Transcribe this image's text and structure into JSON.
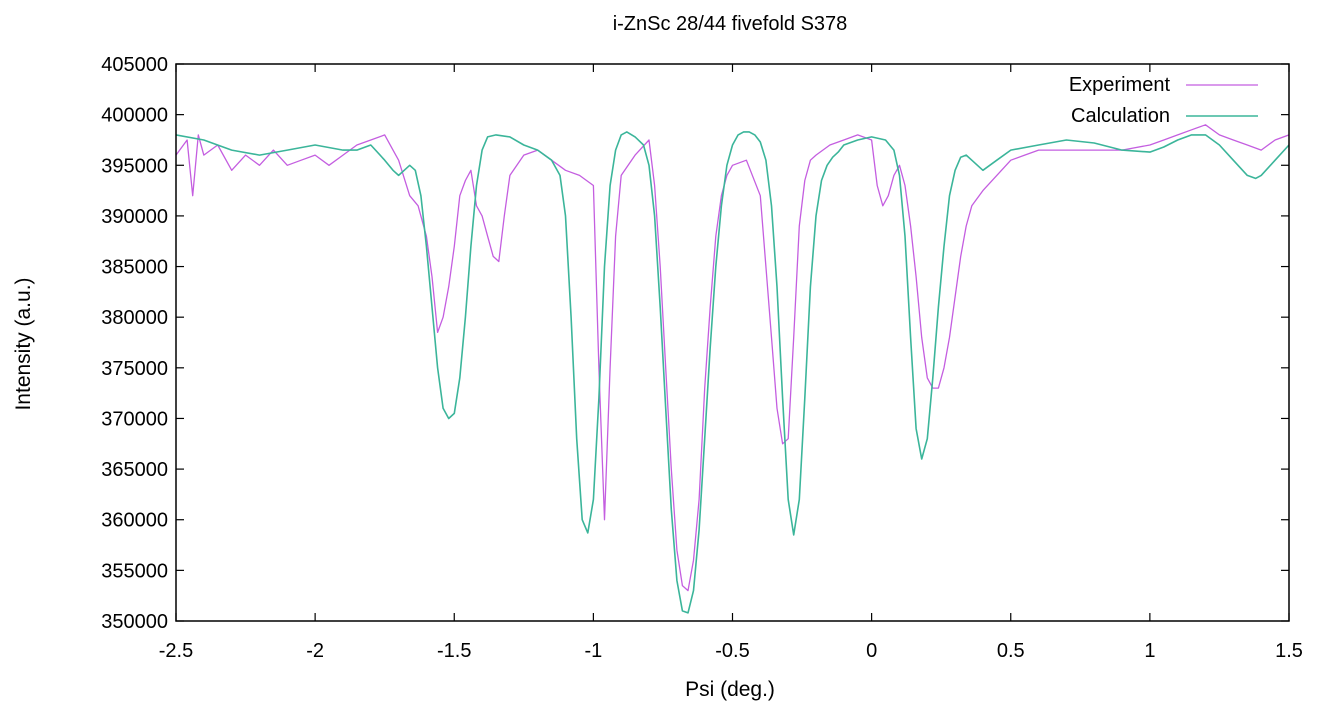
{
  "chart_data": {
    "type": "line",
    "title": "i-ZnSc 28/44 fivefold S378",
    "xlabel": "Psi (deg.)",
    "ylabel": "Intensity (a.u.)",
    "xlim": [
      -2.5,
      1.5
    ],
    "ylim": [
      350000,
      405000
    ],
    "x_ticks": [
      -2.5,
      -2,
      -1.5,
      -1,
      -0.5,
      0,
      0.5,
      1,
      1.5
    ],
    "x_tick_labels": [
      "-2.5",
      "-2",
      "-1.5",
      "-1",
      "-0.5",
      "0",
      "0.5",
      "1",
      "1.5"
    ],
    "y_ticks": [
      350000,
      355000,
      360000,
      365000,
      370000,
      375000,
      380000,
      385000,
      390000,
      395000,
      400000,
      405000
    ],
    "y_tick_labels": [
      "350000",
      "355000",
      "360000",
      "365000",
      "370000",
      "375000",
      "380000",
      "385000",
      "390000",
      "395000",
      "400000",
      "405000"
    ],
    "grid": false,
    "legend_position": "top-right",
    "series": [
      {
        "name": "Experiment",
        "color": "#c45ee0",
        "x": [
          -2.5,
          -2.46,
          -2.44,
          -2.42,
          -2.4,
          -2.35,
          -2.3,
          -2.25,
          -2.2,
          -2.15,
          -2.1,
          -2.05,
          -2.0,
          -1.95,
          -1.9,
          -1.85,
          -1.8,
          -1.75,
          -1.72,
          -1.7,
          -1.66,
          -1.63,
          -1.6,
          -1.58,
          -1.56,
          -1.54,
          -1.52,
          -1.5,
          -1.48,
          -1.46,
          -1.44,
          -1.42,
          -1.4,
          -1.38,
          -1.36,
          -1.34,
          -1.32,
          -1.3,
          -1.25,
          -1.2,
          -1.15,
          -1.1,
          -1.05,
          -1.0,
          -0.98,
          -0.96,
          -0.94,
          -0.92,
          -0.9,
          -0.85,
          -0.8,
          -0.78,
          -0.76,
          -0.74,
          -0.72,
          -0.7,
          -0.68,
          -0.66,
          -0.64,
          -0.62,
          -0.6,
          -0.58,
          -0.56,
          -0.54,
          -0.52,
          -0.5,
          -0.45,
          -0.4,
          -0.38,
          -0.36,
          -0.34,
          -0.32,
          -0.3,
          -0.28,
          -0.26,
          -0.24,
          -0.22,
          -0.2,
          -0.15,
          -0.1,
          -0.05,
          0.0,
          0.02,
          0.04,
          0.06,
          0.08,
          0.1,
          0.12,
          0.14,
          0.16,
          0.18,
          0.2,
          0.22,
          0.24,
          0.26,
          0.28,
          0.3,
          0.32,
          0.34,
          0.36,
          0.4,
          0.45,
          0.5,
          0.55,
          0.6,
          0.7,
          0.8,
          0.9,
          1.0,
          1.05,
          1.1,
          1.15,
          1.2,
          1.25,
          1.3,
          1.35,
          1.4,
          1.45,
          1.5
        ],
        "y": [
          396000,
          397500,
          392000,
          398000,
          396000,
          397000,
          394500,
          396000,
          395000,
          396500,
          395000,
          395500,
          396000,
          395000,
          396000,
          397000,
          397500,
          398000,
          396500,
          395500,
          392000,
          391000,
          388000,
          384000,
          378500,
          380000,
          383000,
          387000,
          392000,
          393500,
          394500,
          391000,
          390000,
          388000,
          386000,
          385500,
          390000,
          394000,
          396000,
          396500,
          395500,
          394500,
          394000,
          393000,
          375000,
          360000,
          375000,
          388000,
          394000,
          396000,
          397500,
          393000,
          385000,
          375000,
          365000,
          357000,
          353500,
          353000,
          356000,
          362000,
          373000,
          381000,
          388000,
          392000,
          394000,
          395000,
          395500,
          392000,
          385000,
          378000,
          371000,
          367500,
          368000,
          378000,
          389000,
          393500,
          395500,
          396000,
          397000,
          397500,
          398000,
          397500,
          393000,
          391000,
          392000,
          394000,
          395000,
          393000,
          389000,
          384000,
          378000,
          374000,
          373000,
          373000,
          375000,
          378000,
          382000,
          386000,
          389000,
          391000,
          392500,
          394000,
          395500,
          396000,
          396500,
          396500,
          396500,
          396500,
          397000,
          397500,
          398000,
          398500,
          399000,
          398000,
          397500,
          397000,
          396500,
          397500,
          398000
        ]
      },
      {
        "name": "Calculation",
        "color": "#3bb59a",
        "x": [
          -2.5,
          -2.4,
          -2.3,
          -2.2,
          -2.1,
          -2.0,
          -1.9,
          -1.85,
          -1.8,
          -1.75,
          -1.72,
          -1.7,
          -1.68,
          -1.66,
          -1.64,
          -1.62,
          -1.6,
          -1.58,
          -1.56,
          -1.54,
          -1.52,
          -1.5,
          -1.48,
          -1.46,
          -1.44,
          -1.42,
          -1.4,
          -1.38,
          -1.35,
          -1.3,
          -1.25,
          -1.2,
          -1.15,
          -1.12,
          -1.1,
          -1.08,
          -1.06,
          -1.04,
          -1.02,
          -1.0,
          -0.98,
          -0.96,
          -0.94,
          -0.92,
          -0.9,
          -0.88,
          -0.85,
          -0.82,
          -0.8,
          -0.78,
          -0.76,
          -0.74,
          -0.72,
          -0.7,
          -0.68,
          -0.66,
          -0.64,
          -0.62,
          -0.6,
          -0.58,
          -0.56,
          -0.54,
          -0.52,
          -0.5,
          -0.48,
          -0.46,
          -0.44,
          -0.42,
          -0.4,
          -0.38,
          -0.36,
          -0.34,
          -0.32,
          -0.3,
          -0.28,
          -0.26,
          -0.24,
          -0.22,
          -0.2,
          -0.18,
          -0.16,
          -0.14,
          -0.12,
          -0.1,
          -0.05,
          0.0,
          0.05,
          0.08,
          0.1,
          0.12,
          0.14,
          0.16,
          0.18,
          0.2,
          0.22,
          0.24,
          0.26,
          0.28,
          0.3,
          0.32,
          0.34,
          0.36,
          0.4,
          0.45,
          0.5,
          0.6,
          0.7,
          0.8,
          0.9,
          1.0,
          1.05,
          1.1,
          1.15,
          1.2,
          1.25,
          1.3,
          1.35,
          1.38,
          1.4,
          1.45,
          1.5
        ],
        "y": [
          398000,
          397500,
          396500,
          396000,
          396500,
          397000,
          396500,
          396500,
          397000,
          395500,
          394500,
          394000,
          394500,
          395000,
          394500,
          392000,
          387000,
          381000,
          375000,
          371000,
          370000,
          370500,
          374000,
          380000,
          387000,
          393000,
          396500,
          397800,
          398000,
          397800,
          397000,
          396500,
          395500,
          394000,
          390000,
          380000,
          368000,
          360000,
          358700,
          362000,
          372000,
          385000,
          393000,
          396500,
          398000,
          398300,
          397800,
          397000,
          395000,
          390000,
          381000,
          371000,
          361000,
          354000,
          351000,
          350800,
          353000,
          359000,
          368000,
          377000,
          385000,
          391000,
          395000,
          397000,
          398000,
          398300,
          398300,
          398000,
          397300,
          395500,
          391000,
          383000,
          372000,
          362000,
          358500,
          362000,
          372000,
          383000,
          390000,
          393500,
          395000,
          395800,
          396300,
          397000,
          397500,
          397800,
          397500,
          396500,
          394000,
          388000,
          378000,
          369000,
          366000,
          368000,
          374000,
          381000,
          387000,
          392000,
          394500,
          395800,
          396000,
          395500,
          394500,
          395500,
          396500,
          397000,
          397500,
          397200,
          396500,
          396300,
          396800,
          397500,
          398000,
          398000,
          397000,
          395500,
          394000,
          393700,
          394000,
          395500,
          397000
        ]
      }
    ]
  }
}
